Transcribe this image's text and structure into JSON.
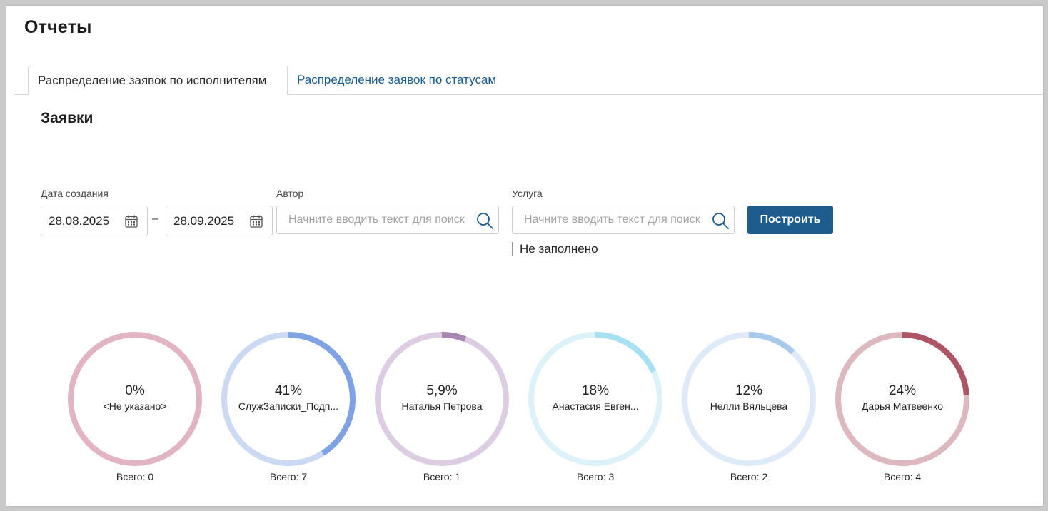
{
  "page": {
    "title": "Отчеты"
  },
  "tabs": [
    {
      "label": "Распределение заявок по исполнителям",
      "active": true
    },
    {
      "label": "Распределение заявок по статусам",
      "active": false
    }
  ],
  "section": {
    "title": "Заявки"
  },
  "filters": {
    "date": {
      "label": "Дата создания",
      "from": "28.08.2025",
      "to": "28.09.2025",
      "separator": "–"
    },
    "author": {
      "label": "Автор",
      "placeholder": "Начните вводить текст для поиска"
    },
    "service": {
      "label": "Услуга",
      "placeholder": "Начните вводить текст для поиска",
      "note": "Не заполнено"
    },
    "build_label": "Построить"
  },
  "chart_data": {
    "type": "pie",
    "items": [
      {
        "percent_label": "0%",
        "name": "<Не указано>",
        "total_label": "Всего: 0",
        "value": 0,
        "fraction": 0,
        "color": "#d9a7b8",
        "track_color": "#e2b3c2"
      },
      {
        "percent_label": "41%",
        "name": "СлужЗаписки_Подп...",
        "total_label": "Всего: 7",
        "value": 7,
        "fraction": 0.41,
        "color": "#7ea2e3",
        "track_color": "#cbd9f4"
      },
      {
        "percent_label": "5,9%",
        "name": "Наталья Петрова",
        "total_label": "Всего: 1",
        "value": 1,
        "fraction": 0.059,
        "color": "#a887b2",
        "track_color": "#dccde2"
      },
      {
        "percent_label": "18%",
        "name": "Анастасия Евген...",
        "total_label": "Всего: 3",
        "value": 3,
        "fraction": 0.18,
        "color": "#a6e0f2",
        "track_color": "#ddf1f9"
      },
      {
        "percent_label": "12%",
        "name": "Нелли Вяльцева",
        "total_label": "Всего: 2",
        "value": 2,
        "fraction": 0.12,
        "color": "#a9c9ec",
        "track_color": "#deeaf8"
      },
      {
        "percent_label": "24%",
        "name": "Дарья Матвеенко",
        "total_label": "Всего: 4",
        "value": 4,
        "fraction": 0.24,
        "color": "#ad5564",
        "track_color": "#deb8bf"
      }
    ]
  }
}
